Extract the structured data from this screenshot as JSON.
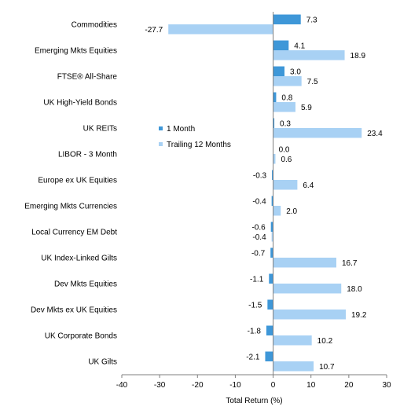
{
  "chart_data": {
    "type": "bar",
    "orientation": "horizontal",
    "categories": [
      "Commodities",
      "Emerging Mkts Equities",
      "FTSE® All-Share",
      "UK High-Yield Bonds",
      "UK REITs",
      "LIBOR - 3 Month",
      "Europe ex UK Equities",
      "Emerging Mkts Currencies",
      "Local Currency EM Debt",
      "UK Index-Linked Gilts",
      "Dev Mkts Equities",
      "Dev Mkts ex UK Equities",
      "UK Corporate Bonds",
      "UK Gilts"
    ],
    "series": [
      {
        "name": "1 Month",
        "color": "#3e97d8",
        "values": [
          7.3,
          4.1,
          3.0,
          0.8,
          0.3,
          0.0,
          -0.3,
          -0.4,
          -0.6,
          -0.7,
          -1.1,
          -1.5,
          -1.8,
          -2.1
        ],
        "labels": [
          "7.3",
          "4.1",
          "3.0",
          "0.8",
          "0.3",
          "0.0",
          "-0.3",
          "-0.4",
          "-0.6",
          "-0.7",
          "-1.1",
          "-1.5",
          "-1.8",
          "-2.1"
        ]
      },
      {
        "name": "Trailing 12 Months",
        "color": "#a8d1f4",
        "values": [
          -27.7,
          18.9,
          7.5,
          5.9,
          23.4,
          0.6,
          6.4,
          2.0,
          -0.4,
          16.7,
          18.0,
          19.2,
          10.2,
          10.7
        ],
        "labels": [
          "-27.7",
          "18.9",
          "7.5",
          "5.9",
          "23.4",
          "0.6",
          "6.4",
          "2.0",
          "-0.4",
          "16.7",
          "18.0",
          "19.2",
          "10.2",
          "10.7"
        ]
      }
    ],
    "xlabel": "Total Return (%)",
    "xlim": [
      -40,
      30
    ],
    "xticks": [
      "-40",
      "-30",
      "-20",
      "-10",
      "0",
      "10",
      "20",
      "30"
    ],
    "legend_position": "center-left",
    "grid": false
  }
}
